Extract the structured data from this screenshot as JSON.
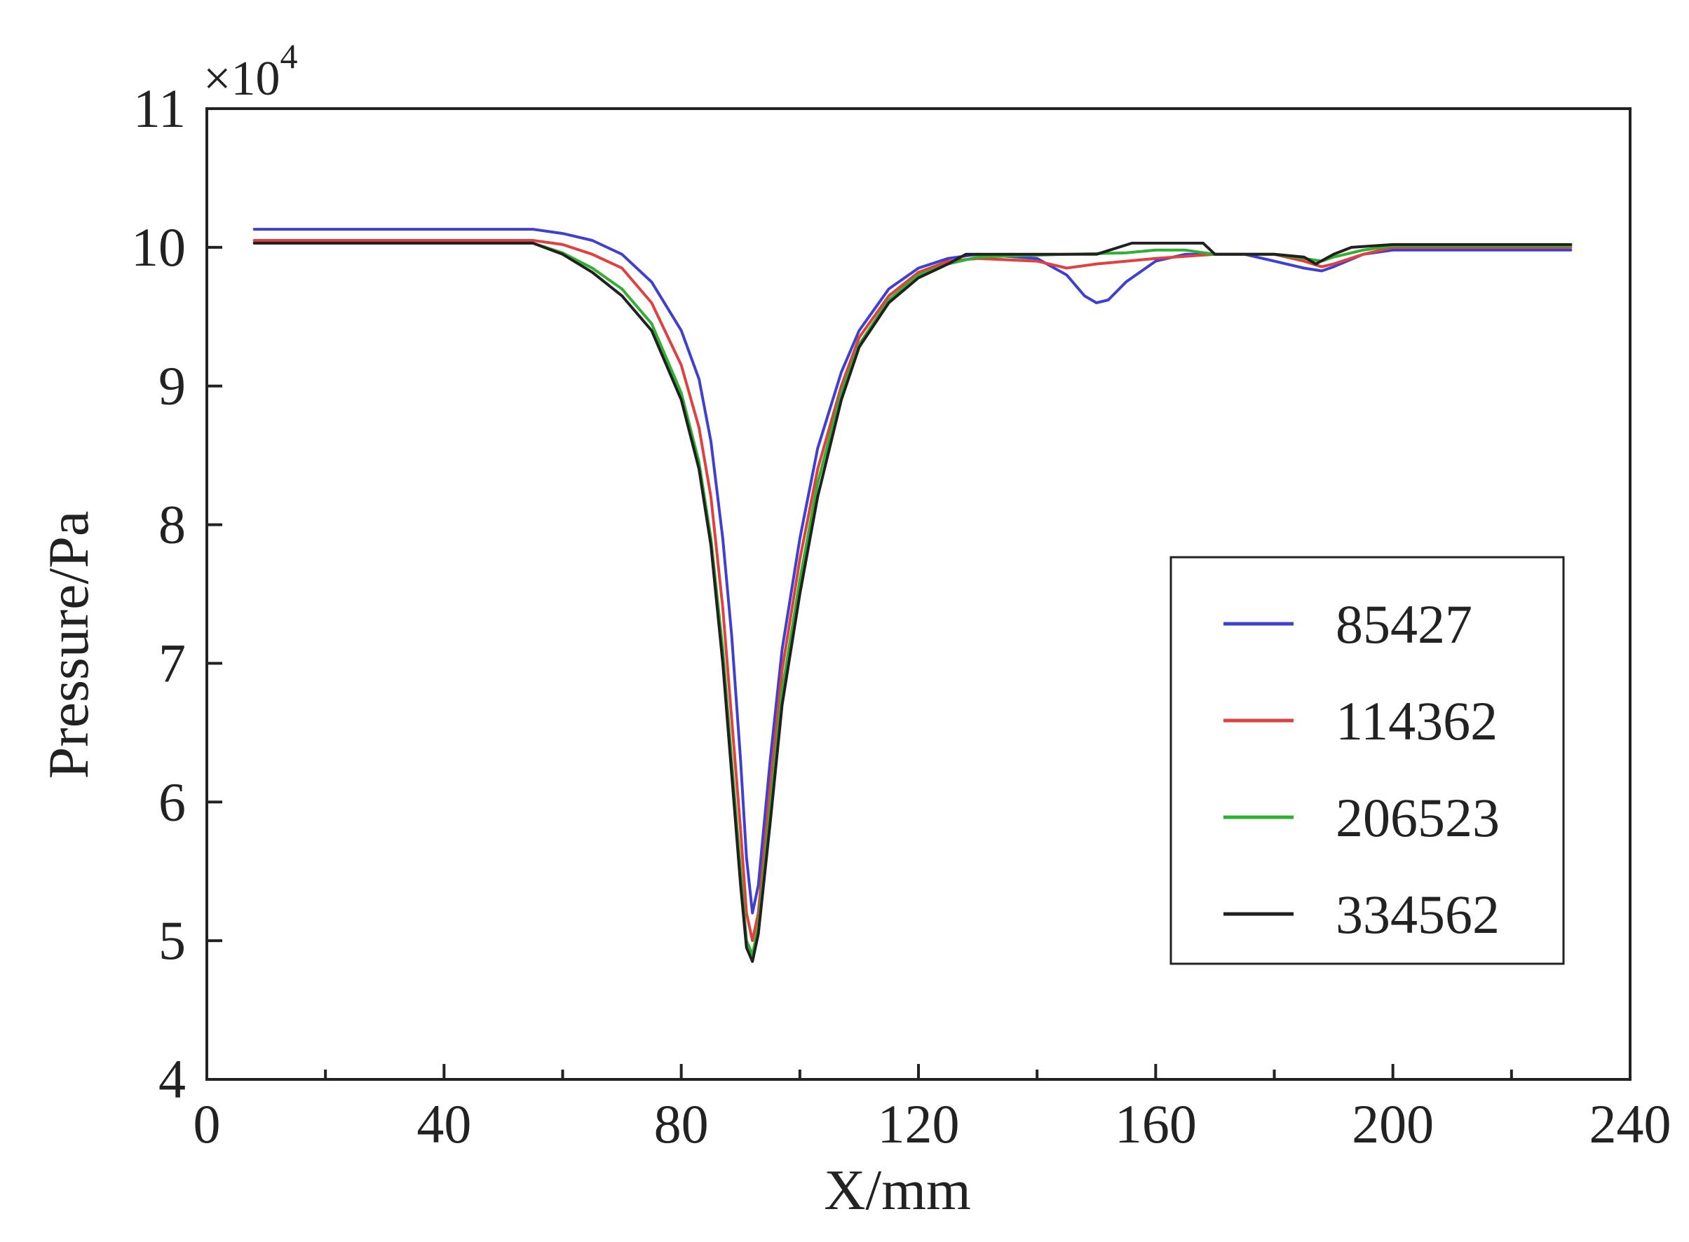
{
  "chart_data": {
    "type": "line",
    "title": "",
    "xlabel": "X/mm",
    "ylabel": "Pressure/Pa",
    "y_multiplier": {
      "base": "×10",
      "exponent": "4"
    },
    "xlim": [
      0,
      240
    ],
    "ylim": [
      4,
      11
    ],
    "xticks": [
      0,
      40,
      80,
      120,
      160,
      200,
      240
    ],
    "xtick_labels": [
      "0",
      "40",
      "80",
      "120",
      "160",
      "200",
      "240"
    ],
    "xminor": [
      20,
      60,
      100,
      140,
      180,
      220
    ],
    "yticks": [
      4,
      5,
      6,
      7,
      8,
      9,
      10,
      11
    ],
    "ytick_labels": [
      "4",
      "5",
      "6",
      "7",
      "8",
      "9",
      "10",
      "11"
    ],
    "grid": false,
    "legend_position": "right",
    "series": [
      {
        "name": "85427",
        "color": "#4040d0",
        "x": [
          8,
          55,
          60,
          65,
          70,
          75,
          80,
          83,
          85,
          87,
          88.5,
          90,
          91,
          92,
          93,
          95,
          97,
          100,
          103,
          107,
          110,
          115,
          120,
          125,
          130,
          140,
          145,
          148,
          150,
          152,
          155,
          160,
          165,
          175,
          180,
          185,
          188,
          190,
          195,
          200,
          230
        ],
        "y": [
          10.13,
          10.13,
          10.1,
          10.05,
          9.95,
          9.75,
          9.4,
          9.05,
          8.6,
          7.9,
          7.2,
          6.3,
          5.6,
          5.2,
          5.4,
          6.3,
          7.1,
          7.9,
          8.55,
          9.1,
          9.4,
          9.7,
          9.85,
          9.92,
          9.95,
          9.92,
          9.8,
          9.65,
          9.6,
          9.62,
          9.75,
          9.9,
          9.95,
          9.95,
          9.9,
          9.85,
          9.83,
          9.86,
          9.95,
          9.98,
          9.98
        ]
      },
      {
        "name": "114362",
        "color": "#e04040",
        "x": [
          8,
          55,
          60,
          65,
          70,
          75,
          80,
          83,
          85,
          87,
          88.5,
          90,
          91,
          92,
          93,
          95,
          97,
          100,
          103,
          107,
          110,
          115,
          120,
          125,
          130,
          140,
          145,
          150,
          160,
          170,
          180,
          185,
          188,
          190,
          195,
          200,
          230
        ],
        "y": [
          10.05,
          10.05,
          10.02,
          9.95,
          9.85,
          9.6,
          9.15,
          8.7,
          8.2,
          7.4,
          6.6,
          5.8,
          5.2,
          5.0,
          5.2,
          6.1,
          6.95,
          7.75,
          8.4,
          9.0,
          9.35,
          9.65,
          9.82,
          9.9,
          9.92,
          9.9,
          9.85,
          9.88,
          9.92,
          9.95,
          9.95,
          9.9,
          9.86,
          9.88,
          9.95,
          10.0,
          10.0
        ]
      },
      {
        "name": "206523",
        "color": "#30b030",
        "x": [
          8,
          55,
          60,
          65,
          70,
          75,
          80,
          83,
          85,
          87,
          88.5,
          90,
          91,
          92,
          93,
          95,
          97,
          100,
          103,
          107,
          110,
          115,
          120,
          125,
          130,
          145,
          155,
          160,
          165,
          170,
          180,
          185,
          188,
          190,
          195,
          200,
          230
        ],
        "y": [
          10.03,
          10.03,
          9.96,
          9.85,
          9.7,
          9.45,
          8.95,
          8.45,
          7.9,
          7.1,
          6.3,
          5.5,
          5.0,
          4.9,
          5.1,
          5.95,
          6.8,
          7.6,
          8.3,
          8.95,
          9.3,
          9.62,
          9.8,
          9.88,
          9.93,
          9.95,
          9.96,
          9.98,
          9.98,
          9.95,
          9.95,
          9.92,
          9.9,
          9.93,
          9.98,
          10.01,
          10.01
        ]
      },
      {
        "name": "334562",
        "color": "#202020",
        "x": [
          8,
          55,
          60,
          65,
          70,
          75,
          80,
          83,
          85,
          87,
          88.5,
          90,
          91,
          92,
          93,
          95,
          97,
          100,
          103,
          107,
          110,
          115,
          120,
          125,
          128,
          150,
          156,
          160,
          168,
          170,
          180,
          185,
          187,
          190,
          193,
          200,
          230
        ],
        "y": [
          10.03,
          10.03,
          9.95,
          9.82,
          9.65,
          9.4,
          8.9,
          8.4,
          7.85,
          7.0,
          6.2,
          5.4,
          4.95,
          4.85,
          5.05,
          5.85,
          6.7,
          7.5,
          8.2,
          8.9,
          9.28,
          9.6,
          9.78,
          9.88,
          9.95,
          9.95,
          10.03,
          10.03,
          10.03,
          9.95,
          9.95,
          9.93,
          9.88,
          9.95,
          10.0,
          10.02,
          10.02
        ]
      }
    ]
  }
}
